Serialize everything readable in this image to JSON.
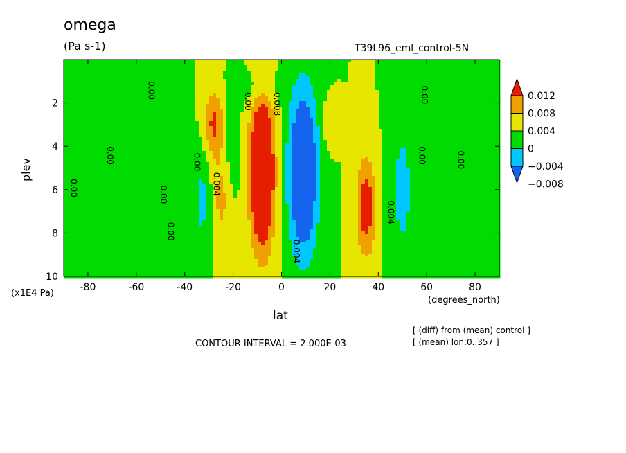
{
  "chart_data": {
    "type": "heatmap",
    "title": "omega",
    "units_label": "(Pa s-1)",
    "run_label": "T39L96_eml_control-5N",
    "xlabel": "lat",
    "x_units": "(degrees_north)",
    "ylabel": "plev",
    "y_units": "(x1E4 Pa)",
    "xlim": [
      -90,
      90
    ],
    "ylim": [
      10,
      0
    ],
    "x_ticks": [
      "-80",
      "-60",
      "-40",
      "-20",
      "0",
      "20",
      "40",
      "60",
      "80"
    ],
    "x_tick_values": [
      -80,
      -60,
      -40,
      -20,
      0,
      20,
      40,
      60,
      80
    ],
    "y_ticks": [
      "2",
      "4",
      "6",
      "8",
      "10"
    ],
    "y_tick_values": [
      2,
      4,
      6,
      8,
      10
    ],
    "contour_interval_text": "CONTOUR INTERVAL = 2.000E-03",
    "notes": [
      "[ (diff) from (mean) control ]",
      "[ (mean) lon:0..357 ]"
    ],
    "colorbar": {
      "labels": [
        "0.012",
        "0.008",
        "0.004",
        "0",
        "−0.004",
        "−0.008"
      ],
      "levels": [
        -0.012,
        -0.008,
        -0.004,
        0,
        0.004,
        0.008,
        0.012
      ],
      "colors": [
        "#1464f0",
        "#00c8ff",
        "#00dc00",
        "#e6e600",
        "#f0a000",
        "#e61e00"
      ]
    },
    "features": [
      {
        "lat": -28,
        "plev": 3.0,
        "sx": 4,
        "sy": 1.6,
        "amp": 0.009
      },
      {
        "lat": -25,
        "plev": 6.5,
        "sx": 4,
        "sy": 2.0,
        "amp": 0.005
      },
      {
        "lat": -33,
        "plev": 6.5,
        "sx": 4,
        "sy": 2.5,
        "amp": -0.005
      },
      {
        "lat": -20,
        "plev": 4.0,
        "sx": 3,
        "sy": 2.0,
        "amp": -0.003
      },
      {
        "lat": -8,
        "plev": 5.2,
        "sx": 5,
        "sy": 3.5,
        "amp": 0.02
      },
      {
        "lat": 9,
        "plev": 5.2,
        "sx": 6,
        "sy": 3.8,
        "amp": -0.017
      },
      {
        "lat": 20,
        "plev": 3.0,
        "sx": 3,
        "sy": 1.0,
        "amp": 0.004
      },
      {
        "lat": 35,
        "plev": 6.8,
        "sx": 4,
        "sy": 2.3,
        "amp": 0.011
      },
      {
        "lat": 50,
        "plev": 6.0,
        "sx": 5,
        "sy": 3.5,
        "amp": -0.0055
      },
      {
        "lat": -10,
        "plev": 1.3,
        "sx": 10,
        "sy": 0.8,
        "amp": -0.003
      },
      {
        "lat": -45,
        "plev": 6.0,
        "sx": 5,
        "sy": 3.0,
        "amp": -0.002
      },
      {
        "lat": -65,
        "plev": 3.0,
        "sx": 5,
        "sy": 1.0,
        "amp": -0.0015
      },
      {
        "lat": -90,
        "plev": 5.0,
        "sx": 4,
        "sy": 4.0,
        "amp": -0.002
      },
      {
        "lat": 90,
        "plev": 4.0,
        "sx": 5,
        "sy": 3.0,
        "amp": -0.002
      }
    ],
    "contour_labels": [
      "0.00",
      "0.00",
      "0.00",
      "0.00",
      "0.00",
      "0.00",
      "0.00",
      "0.00",
      "0.00",
      "0.00",
      "0.004",
      "0.004",
      "0.004",
      "0.008"
    ],
    "contour_label_positions": [
      [
        -87,
        5.5
      ],
      [
        -72,
        4.0
      ],
      [
        -55,
        1.0
      ],
      [
        -50,
        5.8
      ],
      [
        -47,
        7.5
      ],
      [
        -36,
        4.3
      ],
      [
        58,
        1.2
      ],
      [
        57,
        4.0
      ],
      [
        73,
        4.2
      ],
      [
        -15,
        1.5
      ],
      [
        -28,
        5.2
      ],
      [
        5,
        8.3
      ],
      [
        44,
        6.5
      ],
      [
        -3,
        1.5
      ]
    ]
  }
}
